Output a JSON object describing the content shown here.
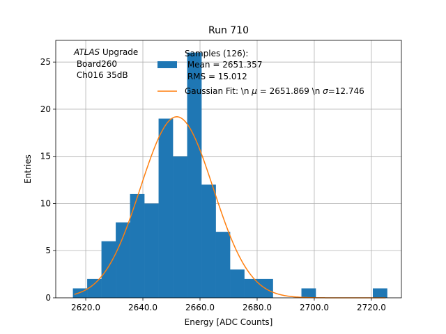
{
  "chart_data": {
    "type": "bar",
    "title": "Run 710",
    "xlabel": "Energy [ADC Counts]",
    "ylabel": "Entries",
    "xlim": [
      2609.5,
      2730.5
    ],
    "ylim": [
      0,
      27.3
    ],
    "grid": true,
    "x_ticks": [
      2620,
      2640,
      2660,
      2680,
      2700,
      2720
    ],
    "x_tick_labels": [
      "2620.0",
      "2640.0",
      "2660.0",
      "2680.0",
      "2700.0",
      "2720.0"
    ],
    "y_ticks": [
      0,
      5,
      10,
      15,
      20,
      25
    ],
    "y_tick_labels": [
      "0",
      "5",
      "10",
      "15",
      "20",
      "25"
    ],
    "bar_color": "#1f77b4",
    "fit_color": "#ff7f0e",
    "histogram": {
      "bin_edges": [
        2615.5,
        2620.5,
        2625.5,
        2630.5,
        2635.5,
        2640.5,
        2645.5,
        2650.5,
        2655.5,
        2660.5,
        2665.5,
        2670.5,
        2675.5,
        2680.5,
        2685.5,
        2690.5,
        2695.5,
        2700.5,
        2705.5,
        2710.5,
        2715.5,
        2720.5,
        2725.5
      ],
      "counts": [
        1,
        2,
        6,
        8,
        11,
        10,
        19,
        15,
        26,
        12,
        7,
        3,
        2,
        2,
        0,
        0,
        1,
        0,
        0,
        0,
        0,
        1
      ]
    },
    "gaussian_fit": {
      "amplitude": 19.2,
      "mu": 2651.869,
      "sigma": 12.746,
      "x_range": [
        2616.0,
        2725.0
      ]
    },
    "annotation": {
      "atlas_italic": "ATLAS",
      "atlas_rest": " Upgrade",
      "line2": " Board260",
      "line3": " Ch016 35dB"
    },
    "legend": {
      "placement": "top-right",
      "hist_label_line1": "Samples (126):",
      "hist_label_line2": " Mean = 2651.357",
      "hist_label_line3": " RMS = 15.012",
      "fit_label_a": "Gaussian Fit: \\n ",
      "fit_label_mu": "μ",
      "fit_label_b": " = 2651.869 \\n ",
      "fit_label_sigma": "σ",
      "fit_label_c": "=12.746"
    }
  }
}
